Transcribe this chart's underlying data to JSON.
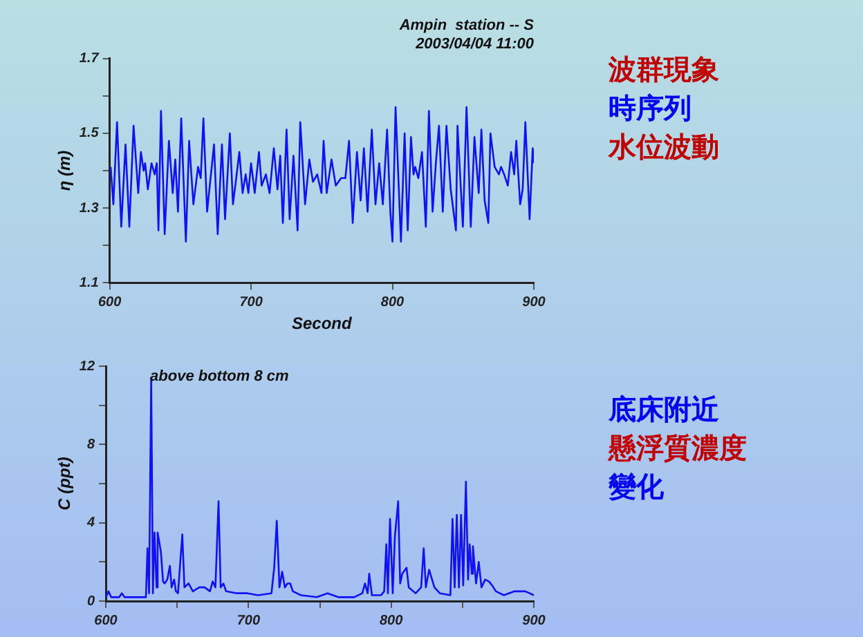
{
  "chart_data": [
    {
      "type": "line",
      "title": "Ampin  station -- S",
      "subtitle": "2003/04/04 11:00",
      "xlabel": "Second",
      "ylabel": "η (m)",
      "xlim": [
        600,
        900
      ],
      "xticks": [
        600,
        700,
        800,
        900
      ],
      "ylim": [
        1.1,
        1.7
      ],
      "yticks": [
        1.1,
        {
          "value": 1.2,
          "label": null
        },
        1.3,
        {
          "value": 1.4,
          "label": null
        },
        1.5,
        {
          "value": 1.6,
          "label": null
        },
        1.7
      ],
      "grid": false,
      "legend": false,
      "marker": "none",
      "line_style": "solid",
      "series": [
        {
          "color": "#1010ff",
          "x": [
            600.7,
            602.6,
            605.2,
            608.2,
            611.2,
            613.9,
            616.9,
            620.2,
            622.1,
            624.0,
            625.1,
            627.0,
            629.6,
            631.8,
            633.3,
            634.5,
            636.3,
            638.9,
            641.9,
            644.6,
            646.4,
            648.3,
            650.6,
            653.9,
            656.2,
            659.2,
            662.5,
            664.4,
            666.3,
            668.9,
            673.8,
            676.4,
            679.4,
            681.6,
            685.0,
            687.2,
            689.5,
            691.7,
            694.0,
            696.2,
            698.1,
            700.0,
            702.6,
            705.6,
            707.5,
            710.5,
            713.1,
            716.1,
            718.7,
            720.6,
            722.5,
            725.1,
            727.3,
            730.0,
            732.9,
            734.8,
            738.2,
            741.2,
            743.8,
            746.8,
            749.8,
            751.3,
            753.5,
            756.9,
            759.9,
            763.7,
            766.7,
            769.3,
            771.9,
            774.9,
            777.5,
            779.8,
            782.4,
            785.4,
            788.0,
            790.6,
            793.2,
            796.2,
            798.5,
            800.0,
            802.2,
            806.0,
            808.6,
            810.8,
            813.1,
            814.9,
            816.1,
            818.3,
            820.9,
            823.6,
            825.8,
            828.4,
            830.7,
            832.9,
            835.6,
            838.2,
            841.2,
            844.9,
            846.0,
            849.8,
            852.4,
            855.4,
            858.0,
            861.0,
            862.9,
            865.2,
            867.8,
            869.3,
            872.3,
            875.3,
            876.8,
            879.0,
            881.6,
            883.9,
            886.1,
            887.6,
            890.3,
            892.1,
            894.0,
            897.0,
            899.2,
            900.0
          ],
          "values": [
            1.41,
            1.31,
            1.53,
            1.25,
            1.47,
            1.25,
            1.52,
            1.34,
            1.45,
            1.4,
            1.42,
            1.35,
            1.42,
            1.39,
            1.42,
            1.24,
            1.56,
            1.23,
            1.48,
            1.34,
            1.43,
            1.29,
            1.54,
            1.21,
            1.48,
            1.31,
            1.41,
            1.38,
            1.54,
            1.29,
            1.47,
            1.23,
            1.47,
            1.27,
            1.5,
            1.31,
            1.38,
            1.45,
            1.34,
            1.39,
            1.34,
            1.42,
            1.34,
            1.45,
            1.36,
            1.39,
            1.34,
            1.46,
            1.35,
            1.44,
            1.26,
            1.51,
            1.27,
            1.44,
            1.24,
            1.53,
            1.31,
            1.43,
            1.37,
            1.39,
            1.34,
            1.48,
            1.34,
            1.43,
            1.36,
            1.38,
            1.38,
            1.48,
            1.26,
            1.45,
            1.32,
            1.46,
            1.29,
            1.51,
            1.31,
            1.42,
            1.31,
            1.51,
            1.29,
            1.21,
            1.57,
            1.21,
            1.5,
            1.24,
            1.49,
            1.39,
            1.41,
            1.38,
            1.45,
            1.25,
            1.56,
            1.29,
            1.42,
            1.52,
            1.29,
            1.52,
            1.35,
            1.24,
            1.52,
            1.25,
            1.57,
            1.25,
            1.49,
            1.34,
            1.51,
            1.32,
            1.26,
            1.5,
            1.41,
            1.39,
            1.41,
            1.39,
            1.36,
            1.45,
            1.39,
            1.48,
            1.31,
            1.35,
            1.53,
            1.27,
            1.46,
            1.42
          ]
        }
      ]
    },
    {
      "type": "other",
      "annotations": [
        "波群現象",
        "時序列",
        "水位波動"
      ],
      "colors": [
        "#c00000",
        "#0000ff",
        "#c00000"
      ]
    },
    {
      "type": "line",
      "ylabel": "C (ppt)",
      "annotations": [
        "above bottom 8 cm"
      ],
      "xlim": [
        600,
        900
      ],
      "xticks": [
        600,
        {
          "value": 650,
          "label": null
        },
        700,
        {
          "value": 750,
          "label": null
        },
        800,
        {
          "value": 850,
          "label": null
        },
        900
      ],
      "ylim": [
        0,
        12
      ],
      "yticks": [
        0,
        {
          "value": 2,
          "label": null
        },
        4,
        {
          "value": 6,
          "label": null
        },
        8,
        {
          "value": 10,
          "label": null
        },
        12
      ],
      "grid": false,
      "legend": false,
      "marker": "none",
      "line_style": "solid",
      "series": [
        {
          "color": "#1010ff",
          "x": [
            600.0,
            601.9,
            603.7,
            609.4,
            611.2,
            613.1,
            628.1,
            629.2,
            630.3,
            631.8,
            633.0,
            634.1,
            635.6,
            636.3,
            637.5,
            638.6,
            640.1,
            641.2,
            643.1,
            644.9,
            646.1,
            647.9,
            649.1,
            650.6,
            653.6,
            655.1,
            658.0,
            661.0,
            665.5,
            669.3,
            673.0,
            674.9,
            676.8,
            679.0,
            680.5,
            682.4,
            684.3,
            691.8,
            699.2,
            706.7,
            716.1,
            718.0,
            719.8,
            721.7,
            723.6,
            725.5,
            727.3,
            729.2,
            731.1,
            736.7,
            747.9,
            755.4,
            762.9,
            774.1,
            779.8,
            781.6,
            783.5,
            784.6,
            786.5,
            792.9,
            795.1,
            796.6,
            797.7,
            799.2,
            801.1,
            802.6,
            804.9,
            806.3,
            807.8,
            810.8,
            812.3,
            817.2,
            821.0,
            822.8,
            824.3,
            826.6,
            830.3,
            834.1,
            841.5,
            843.0,
            844.5,
            846.0,
            847.5,
            849.0,
            850.5,
            852.4,
            853.9,
            855.0,
            856.5,
            857.3,
            859.5,
            861.4,
            863.3,
            865.9,
            868.5,
            870.8,
            873.4,
            879.0,
            886.5,
            894.0,
            900.0
          ],
          "values": [
            0.2,
            0.5,
            0.2,
            0.2,
            0.4,
            0.2,
            0.2,
            2.7,
            0.4,
            11.4,
            0.4,
            3.5,
            0.7,
            3.5,
            3.0,
            2.5,
            1.0,
            0.9,
            1.1,
            1.8,
            0.7,
            1.1,
            0.5,
            0.4,
            3.4,
            0.7,
            0.9,
            0.5,
            0.7,
            0.7,
            0.5,
            1.0,
            0.7,
            5.1,
            0.7,
            0.9,
            0.5,
            0.4,
            0.4,
            0.3,
            0.4,
            1.7,
            4.1,
            0.7,
            1.5,
            0.7,
            0.9,
            0.9,
            0.5,
            0.3,
            0.2,
            0.4,
            0.2,
            0.2,
            0.4,
            0.9,
            0.4,
            1.4,
            0.3,
            0.3,
            0.5,
            2.9,
            0.4,
            4.2,
            0.4,
            3.3,
            5.1,
            0.9,
            1.4,
            1.7,
            0.7,
            0.4,
            0.7,
            2.7,
            0.7,
            1.6,
            0.7,
            0.4,
            0.3,
            4.2,
            0.7,
            4.4,
            0.7,
            4.4,
            0.8,
            6.1,
            1.1,
            2.9,
            1.4,
            2.8,
            0.9,
            2.0,
            0.7,
            1.1,
            1.0,
            0.8,
            0.5,
            0.3,
            0.5,
            0.5,
            0.3
          ]
        }
      ]
    },
    {
      "type": "other",
      "annotations": [
        "底床附近",
        "懸浮質濃度",
        "變化"
      ],
      "colors": [
        "#0000ff",
        "#c00000",
        "#0000ff"
      ]
    }
  ]
}
